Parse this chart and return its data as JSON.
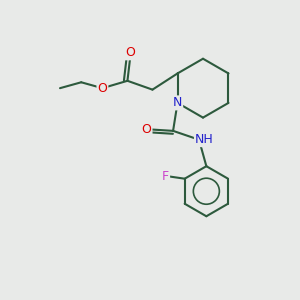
{
  "bg_color": "#e8eae8",
  "bond_color": "#2d5a3d",
  "bond_lw": 1.5,
  "atom_colors": {
    "O": "#dd0000",
    "N": "#2222cc",
    "F": "#cc44cc",
    "C": "#2d5a3d"
  },
  "figsize": [
    3.0,
    3.0
  ],
  "dpi": 100,
  "xlim": [
    0,
    10
  ],
  "ylim": [
    0,
    10
  ]
}
